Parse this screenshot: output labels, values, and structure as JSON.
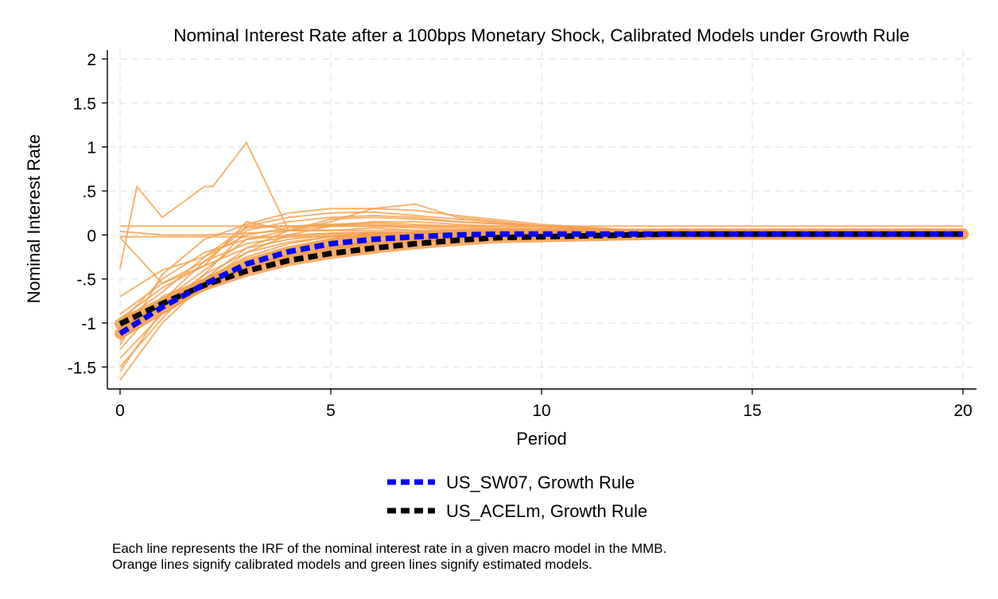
{
  "chart_data": {
    "type": "line",
    "title": "Nominal Interest Rate after a 100bps Monetary Shock, Calibrated Models under Growth Rule",
    "xlabel": "Period",
    "ylabel": "Nominal Interest Rate",
    "xlim": [
      0,
      20
    ],
    "ylim": [
      -1.75,
      2.1
    ],
    "x_ticks": [
      {
        "value": 0,
        "label": "0"
      },
      {
        "value": 5,
        "label": "5"
      },
      {
        "value": 10,
        "label": "10"
      },
      {
        "value": 15,
        "label": "15"
      },
      {
        "value": 20,
        "label": "20"
      }
    ],
    "y_ticks": [
      {
        "value": 2,
        "label": "2"
      },
      {
        "value": 1.5,
        "label": "1.5"
      },
      {
        "value": 1,
        "label": "1"
      },
      {
        "value": 0.5,
        "label": ".5"
      },
      {
        "value": 0,
        "label": "0"
      },
      {
        "value": -0.5,
        "label": "-.5"
      },
      {
        "value": -1,
        "label": "-1"
      },
      {
        "value": -1.5,
        "label": "-1.5"
      }
    ],
    "grid": true,
    "legend_position": "bottom",
    "colors": {
      "calibrated": "#f5a04f",
      "us_sw07": "#0000ff",
      "us_acelm": "#000000",
      "grid": "#e6e6e6"
    },
    "series": [
      {
        "name": "US_SW07, Growth Rule",
        "style": "dashed-blue",
        "x": [
          0,
          1,
          2,
          3,
          4,
          5,
          6,
          7,
          8,
          9,
          10,
          11,
          12,
          13,
          14,
          15,
          16,
          17,
          18,
          19,
          20
        ],
        "y": [
          -1.12,
          -0.82,
          -0.56,
          -0.33,
          -0.19,
          -0.1,
          -0.05,
          -0.02,
          0,
          0.01,
          0.01,
          0.01,
          0.01,
          0.01,
          0.01,
          0.01,
          0.01,
          0.01,
          0.01,
          0.01,
          0.01
        ]
      },
      {
        "name": "US_ACELm, Growth Rule",
        "style": "dashed-black",
        "x": [
          0,
          1,
          2,
          3,
          4,
          5,
          6,
          7,
          8,
          9,
          10,
          11,
          12,
          13,
          14,
          15,
          16,
          17,
          18,
          19,
          20
        ],
        "y": [
          -1.01,
          -0.78,
          -0.57,
          -0.41,
          -0.29,
          -0.21,
          -0.15,
          -0.1,
          -0.06,
          -0.03,
          -0.02,
          -0.01,
          0,
          0.01,
          0.01,
          0.01,
          0.01,
          0.01,
          0.01,
          0.01,
          0.01
        ]
      },
      {
        "style": "calibrated",
        "x": [
          0,
          0.4,
          1,
          2,
          2.2,
          3,
          4,
          5,
          6,
          7,
          8,
          10,
          12,
          15,
          20
        ],
        "y": [
          -0.38,
          0.55,
          0.2,
          0.55,
          0.55,
          1.05,
          0.05,
          0.05,
          0.08,
          0.05,
          0.05,
          0.03,
          0.02,
          0.02,
          0.02
        ]
      },
      {
        "style": "calibrated",
        "x": [
          0,
          1,
          2,
          3,
          4,
          5,
          6,
          7,
          8,
          10,
          12,
          15,
          20
        ],
        "y": [
          0.04,
          0,
          0,
          0.02,
          0.05,
          0.05,
          0.05,
          0.05,
          0.04,
          0.03,
          0.02,
          0.02,
          0.02
        ]
      },
      {
        "style": "calibrated",
        "x": [
          0,
          1,
          2,
          3,
          4,
          5,
          6,
          7,
          8,
          10,
          12,
          15,
          20
        ],
        "y": [
          -0.03,
          -0.55,
          -0.35,
          0.15,
          0.05,
          0.15,
          0.3,
          0.35,
          0.2,
          0.1,
          0.06,
          0.04,
          0.02
        ]
      },
      {
        "style": "calibrated",
        "x": [
          0,
          1,
          2,
          3,
          4,
          5,
          6,
          7,
          8,
          10,
          12,
          15,
          20
        ],
        "y": [
          -1.25,
          -0.45,
          -0.05,
          0.12,
          0.25,
          0.3,
          0.3,
          0.28,
          0.22,
          0.12,
          0.06,
          0.03,
          0.01
        ]
      },
      {
        "style": "calibrated",
        "x": [
          0,
          1,
          2,
          3,
          4,
          5,
          6,
          7,
          8,
          10,
          12,
          15,
          20
        ],
        "y": [
          -0.7,
          -0.4,
          -0.25,
          0.1,
          0.2,
          0.25,
          0.26,
          0.22,
          0.18,
          0.1,
          0.05,
          0.02,
          0.01
        ]
      },
      {
        "style": "calibrated",
        "x": [
          0,
          1,
          2,
          3,
          4,
          5,
          6,
          7,
          8,
          10,
          12,
          15,
          20
        ],
        "y": [
          -1.5,
          -0.95,
          -0.45,
          0.05,
          0.15,
          0.2,
          0.22,
          0.2,
          0.15,
          0.1,
          0.05,
          0.03,
          0.02
        ]
      },
      {
        "style": "calibrated",
        "x": [
          0,
          1,
          2,
          3,
          4,
          5,
          6,
          7,
          8,
          10,
          12,
          15,
          20
        ],
        "y": [
          -1.65,
          -1.0,
          -0.55,
          -0.2,
          0,
          0.1,
          0.15,
          0.15,
          0.12,
          0.08,
          0.04,
          0.02,
          0.01
        ]
      },
      {
        "style": "calibrated",
        "x": [
          0,
          1,
          2,
          3,
          4,
          5,
          6,
          7,
          8,
          10,
          12,
          15,
          20
        ],
        "y": [
          -1.55,
          -0.85,
          -0.5,
          -0.15,
          0.05,
          0.18,
          0.2,
          0.18,
          0.15,
          0.1,
          0.05,
          0.03,
          0.02
        ]
      },
      {
        "style": "calibrated",
        "x": [
          0,
          1,
          2,
          3,
          4,
          5,
          6,
          7,
          8,
          10,
          12,
          15,
          20
        ],
        "y": [
          -1.2,
          -0.75,
          -0.3,
          0.08,
          0.1,
          0.12,
          0.12,
          0.1,
          0.08,
          0.05,
          0.03,
          0.02,
          0.01
        ]
      },
      {
        "style": "calibrated",
        "x": [
          0,
          1,
          2,
          3,
          4,
          5,
          6,
          7,
          8,
          10,
          12,
          15,
          20
        ],
        "y": [
          -1.4,
          -0.9,
          -0.6,
          -0.3,
          -0.15,
          -0.05,
          0,
          0.02,
          0.02,
          0.02,
          0.01,
          0.01,
          0.01
        ]
      },
      {
        "style": "calibrated",
        "x": [
          0,
          1,
          2,
          3,
          4,
          5,
          6,
          7,
          8,
          10,
          12,
          15,
          20
        ],
        "y": [
          -0.95,
          -0.6,
          -0.35,
          -0.15,
          -0.05,
          0,
          0.02,
          0.02,
          0.02,
          0.01,
          0.01,
          0,
          0
        ]
      },
      {
        "style": "calibrated",
        "x": [
          0,
          1,
          2,
          3,
          4,
          5,
          6,
          7,
          8,
          10,
          12,
          15,
          20
        ],
        "y": [
          -1.1,
          -0.8,
          -0.45,
          -0.2,
          -0.08,
          -0.02,
          0.02,
          0.03,
          0.03,
          0.02,
          0.01,
          0.01,
          0.01
        ]
      },
      {
        "style": "calibrated",
        "x": [
          0,
          1,
          2,
          3,
          4,
          5,
          6,
          7,
          8,
          10,
          12,
          15,
          20
        ],
        "y": [
          -1.3,
          -0.75,
          -0.4,
          -0.05,
          0.05,
          0.1,
          0.1,
          0.08,
          0.06,
          0.04,
          0.02,
          0.01,
          0
        ]
      },
      {
        "style": "calibrated",
        "x": [
          0,
          1,
          2,
          3,
          4,
          5,
          6,
          7,
          8,
          10,
          12,
          15,
          20
        ],
        "y": [
          -1.0,
          -0.65,
          -0.25,
          0,
          0.08,
          0.12,
          0.14,
          0.12,
          0.1,
          0.06,
          0.03,
          0.02,
          0.01
        ]
      },
      {
        "style": "calibrated",
        "x": [
          0,
          1,
          2,
          3,
          4,
          5,
          6,
          7,
          8,
          10,
          12,
          15,
          20
        ],
        "y": [
          -1.15,
          -0.7,
          -0.5,
          -0.25,
          -0.1,
          -0.02,
          0.02,
          0.02,
          0.02,
          0.01,
          0.01,
          0,
          0
        ]
      },
      {
        "style": "calibrated",
        "x": [
          0,
          1,
          2,
          3,
          4,
          5,
          6,
          7,
          8,
          10,
          12,
          15,
          20
        ],
        "y": [
          -0.9,
          -0.55,
          -0.3,
          -0.1,
          -0.02,
          0.02,
          0.03,
          0.03,
          0.02,
          0.02,
          0.01,
          0.01,
          0
        ]
      },
      {
        "style": "calibrated",
        "x": [
          0,
          1,
          2,
          3,
          4,
          5,
          6,
          7,
          8,
          10,
          12,
          15,
          20
        ],
        "y": [
          -1.0,
          -0.5,
          -0.2,
          -0.05,
          0,
          0.02,
          0.03,
          0.03,
          0.02,
          0.02,
          0.01,
          0,
          0
        ]
      },
      {
        "style": "calibrated",
        "x": [
          0,
          1,
          2,
          3,
          4,
          5,
          6,
          7,
          8,
          10,
          12,
          15,
          20
        ],
        "y": [
          -1.18,
          -0.9,
          -0.62,
          -0.4,
          -0.25,
          -0.15,
          -0.08,
          -0.04,
          -0.02,
          0,
          0,
          0,
          0
        ]
      },
      {
        "style": "calibrated",
        "x": [
          0,
          1,
          2,
          3,
          4,
          5,
          6,
          7,
          8,
          10,
          12,
          15,
          20
        ],
        "y": [
          -1.05,
          -0.78,
          -0.55,
          -0.35,
          -0.22,
          -0.13,
          -0.07,
          -0.04,
          -0.02,
          -0.01,
          0,
          0,
          0
        ]
      },
      {
        "style": "calibrated",
        "x": [
          0,
          5,
          10,
          15,
          20
        ],
        "y": [
          -0.02,
          -0.02,
          -0.03,
          -0.03,
          -0.03
        ]
      },
      {
        "style": "calibrated",
        "x": [
          0,
          5,
          10,
          15,
          20
        ],
        "y": [
          0.1,
          0.1,
          0.1,
          0.1,
          0.1
        ]
      }
    ]
  },
  "legend": {
    "items": [
      "US_SW07, Growth Rule",
      "US_ACELm, Growth Rule"
    ]
  },
  "note": {
    "line1": "Each line represents the IRF of the nominal interest rate in a given macro model in the MMB.",
    "line2": "Orange lines signify calibrated models and green lines signify estimated models."
  }
}
